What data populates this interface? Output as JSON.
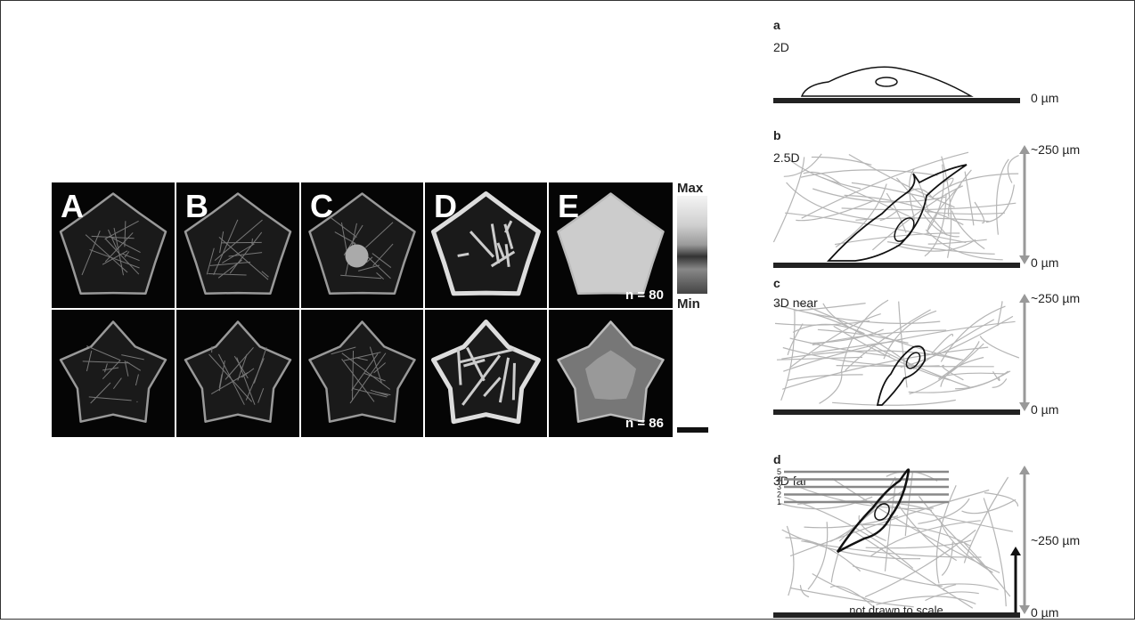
{
  "left_figure": {
    "panels": [
      {
        "label": "A"
      },
      {
        "label": "B"
      },
      {
        "label": "C"
      },
      {
        "label": "D"
      },
      {
        "label": "E"
      }
    ],
    "colorbar": {
      "max": "Max",
      "min": "Min"
    },
    "counts": [
      "n = 80",
      "n = 86"
    ]
  },
  "right_figure": {
    "panels": [
      {
        "label": "a",
        "condition": "2D",
        "depth_labels": [
          "0 µm"
        ]
      },
      {
        "label": "b",
        "condition": "2.5D",
        "depth_labels": [
          "~250 µm",
          "0 µm"
        ]
      },
      {
        "label": "c",
        "condition": "3D near",
        "depth_labels": [
          "~250 µm",
          "0 µm"
        ]
      },
      {
        "label": "d",
        "condition": "3D far",
        "depth_labels": [
          "~250 µm",
          "0 µm"
        ]
      }
    ],
    "slice_numbers": [
      "5",
      "4",
      "3",
      "2",
      "1"
    ],
    "note": "not drawn to scale"
  }
}
